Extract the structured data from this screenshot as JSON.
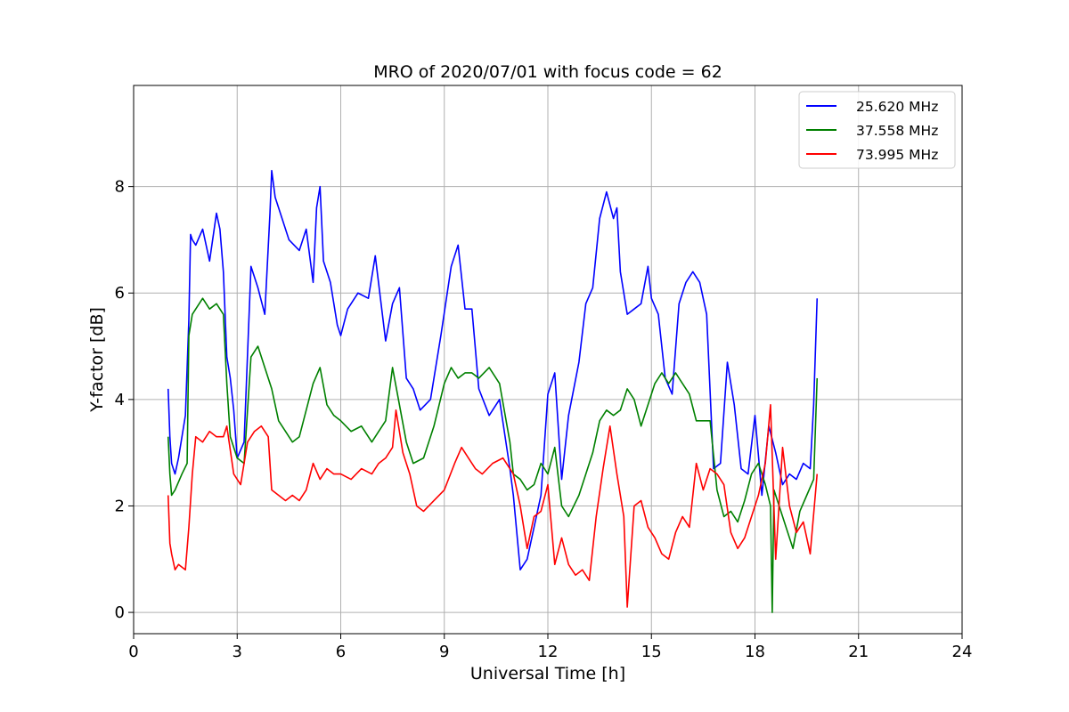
{
  "chart_data": {
    "type": "line",
    "title": "MRO of 2020/07/01 with focus code = 62",
    "xlabel": "Universal Time [h]",
    "ylabel": "Y-factor [dB]",
    "xlim": [
      0,
      24
    ],
    "ylim": [
      -0.4,
      9.9
    ],
    "xticks": [
      0,
      3,
      6,
      9,
      12,
      15,
      18,
      21,
      24
    ],
    "yticks": [
      0,
      2,
      4,
      6,
      8
    ],
    "grid": true,
    "legend_position": "top-right",
    "series": [
      {
        "name": "25.620 MHz",
        "color": "#0000ff",
        "x": [
          1.0,
          1.05,
          1.1,
          1.2,
          1.3,
          1.4,
          1.5,
          1.6,
          1.65,
          1.7,
          1.8,
          2.0,
          2.2,
          2.4,
          2.5,
          2.6,
          2.7,
          2.8,
          2.9,
          3.0,
          3.2,
          3.4,
          3.6,
          3.8,
          3.95,
          4.0,
          4.1,
          4.3,
          4.5,
          4.8,
          5.0,
          5.2,
          5.3,
          5.4,
          5.5,
          5.7,
          5.9,
          6.0,
          6.2,
          6.5,
          6.8,
          7.0,
          7.3,
          7.5,
          7.7,
          7.9,
          8.1,
          8.3,
          8.6,
          8.9,
          9.2,
          9.4,
          9.6,
          9.8,
          10.0,
          10.3,
          10.6,
          10.9,
          11.0,
          11.2,
          11.4,
          11.6,
          11.8,
          12.0,
          12.2,
          12.4,
          12.6,
          12.9,
          13.1,
          13.3,
          13.5,
          13.7,
          13.9,
          14.0,
          14.1,
          14.3,
          14.5,
          14.7,
          14.9,
          15.0,
          15.2,
          15.4,
          15.6,
          15.8,
          16.0,
          16.2,
          16.4,
          16.6,
          16.8,
          17.0,
          17.2,
          17.4,
          17.6,
          17.8,
          18.0,
          18.2,
          18.4,
          18.6,
          18.8,
          19.0,
          19.2,
          19.4,
          19.6,
          19.7,
          19.8
        ],
        "y": [
          4.2,
          3.3,
          2.8,
          2.6,
          2.9,
          3.3,
          3.7,
          5.5,
          7.1,
          7.0,
          6.9,
          7.2,
          6.6,
          7.5,
          7.2,
          6.4,
          4.8,
          4.4,
          3.8,
          2.9,
          3.2,
          6.5,
          6.1,
          5.6,
          7.5,
          8.3,
          7.8,
          7.4,
          7.0,
          6.8,
          7.2,
          6.2,
          7.6,
          8.0,
          6.6,
          6.2,
          5.4,
          5.2,
          5.7,
          6.0,
          5.9,
          6.7,
          5.1,
          5.8,
          6.1,
          4.4,
          4.2,
          3.8,
          4.0,
          5.2,
          6.5,
          6.9,
          5.7,
          5.7,
          4.2,
          3.7,
          4.0,
          2.7,
          2.2,
          0.8,
          1.0,
          1.6,
          2.2,
          4.1,
          4.5,
          2.5,
          3.7,
          4.7,
          5.8,
          6.1,
          7.4,
          7.9,
          7.4,
          7.6,
          6.4,
          5.6,
          5.7,
          5.8,
          6.5,
          5.9,
          5.6,
          4.4,
          4.1,
          5.8,
          6.2,
          6.4,
          6.2,
          5.6,
          2.7,
          2.8,
          4.7,
          3.9,
          2.7,
          2.6,
          3.7,
          2.2,
          3.5,
          3.0,
          2.4,
          2.6,
          2.5,
          2.8,
          2.7,
          3.9,
          5.9
        ]
      },
      {
        "name": "37.558 MHz",
        "color": "#008000",
        "x": [
          1.0,
          1.05,
          1.1,
          1.2,
          1.4,
          1.55,
          1.6,
          1.7,
          1.8,
          2.0,
          2.2,
          2.4,
          2.6,
          2.7,
          2.8,
          3.0,
          3.2,
          3.4,
          3.6,
          3.8,
          4.0,
          4.2,
          4.4,
          4.6,
          4.8,
          5.0,
          5.2,
          5.4,
          5.6,
          5.8,
          6.0,
          6.3,
          6.6,
          6.9,
          7.1,
          7.3,
          7.5,
          7.7,
          7.9,
          8.1,
          8.4,
          8.7,
          9.0,
          9.2,
          9.4,
          9.6,
          9.8,
          10.0,
          10.3,
          10.6,
          10.9,
          11.0,
          11.2,
          11.4,
          11.6,
          11.8,
          12.0,
          12.2,
          12.4,
          12.6,
          12.9,
          13.1,
          13.3,
          13.5,
          13.7,
          13.9,
          14.1,
          14.3,
          14.5,
          14.7,
          14.9,
          15.1,
          15.3,
          15.5,
          15.7,
          15.9,
          16.1,
          16.3,
          16.5,
          16.7,
          16.9,
          17.1,
          17.3,
          17.5,
          17.7,
          17.9,
          18.1,
          18.3,
          18.45,
          18.5,
          18.55,
          18.7,
          18.9,
          19.1,
          19.3,
          19.5,
          19.7,
          19.8
        ],
        "y": [
          3.3,
          2.6,
          2.2,
          2.3,
          2.6,
          2.8,
          5.2,
          5.6,
          5.7,
          5.9,
          5.7,
          5.8,
          5.6,
          4.3,
          3.3,
          2.9,
          2.8,
          4.8,
          5.0,
          4.6,
          4.2,
          3.6,
          3.4,
          3.2,
          3.3,
          3.8,
          4.3,
          4.6,
          3.9,
          3.7,
          3.6,
          3.4,
          3.5,
          3.2,
          3.4,
          3.6,
          4.6,
          3.9,
          3.2,
          2.8,
          2.9,
          3.5,
          4.3,
          4.6,
          4.4,
          4.5,
          4.5,
          4.4,
          4.6,
          4.3,
          3.2,
          2.6,
          2.5,
          2.3,
          2.4,
          2.8,
          2.6,
          3.1,
          2.0,
          1.8,
          2.2,
          2.6,
          3.0,
          3.6,
          3.8,
          3.7,
          3.8,
          4.2,
          4.0,
          3.5,
          3.9,
          4.3,
          4.5,
          4.3,
          4.5,
          4.3,
          4.1,
          3.6,
          3.6,
          3.6,
          2.3,
          1.8,
          1.9,
          1.7,
          2.1,
          2.6,
          2.8,
          2.4,
          2.0,
          0.0,
          2.3,
          2.0,
          1.6,
          1.2,
          1.9,
          2.2,
          2.5,
          4.4
        ]
      },
      {
        "name": "73.995 MHz",
        "color": "#ff0000",
        "x": [
          1.0,
          1.05,
          1.1,
          1.2,
          1.3,
          1.5,
          1.6,
          1.7,
          1.8,
          2.0,
          2.2,
          2.4,
          2.6,
          2.7,
          2.9,
          3.1,
          3.3,
          3.5,
          3.7,
          3.9,
          4.0,
          4.2,
          4.4,
          4.6,
          4.8,
          5.0,
          5.2,
          5.4,
          5.6,
          5.8,
          6.0,
          6.3,
          6.6,
          6.9,
          7.1,
          7.3,
          7.5,
          7.6,
          7.8,
          8.0,
          8.2,
          8.4,
          8.7,
          9.0,
          9.3,
          9.5,
          9.7,
          9.9,
          10.1,
          10.4,
          10.7,
          11.0,
          11.2,
          11.4,
          11.6,
          11.8,
          12.0,
          12.2,
          12.4,
          12.6,
          12.8,
          13.0,
          13.2,
          13.4,
          13.6,
          13.8,
          14.0,
          14.2,
          14.3,
          14.5,
          14.7,
          14.9,
          15.1,
          15.3,
          15.5,
          15.7,
          15.9,
          16.1,
          16.3,
          16.5,
          16.7,
          16.9,
          17.1,
          17.3,
          17.5,
          17.7,
          17.9,
          18.1,
          18.3,
          18.45,
          18.6,
          18.8,
          19.0,
          19.2,
          19.4,
          19.6,
          19.8
        ],
        "y": [
          2.2,
          1.3,
          1.1,
          0.8,
          0.9,
          0.8,
          1.6,
          2.6,
          3.3,
          3.2,
          3.4,
          3.3,
          3.3,
          3.5,
          2.6,
          2.4,
          3.2,
          3.4,
          3.5,
          3.3,
          2.3,
          2.2,
          2.1,
          2.2,
          2.1,
          2.3,
          2.8,
          2.5,
          2.7,
          2.6,
          2.6,
          2.5,
          2.7,
          2.6,
          2.8,
          2.9,
          3.1,
          3.8,
          3.0,
          2.6,
          2.0,
          1.9,
          2.1,
          2.3,
          2.8,
          3.1,
          2.9,
          2.7,
          2.6,
          2.8,
          2.9,
          2.6,
          2.0,
          1.2,
          1.8,
          1.9,
          2.4,
          0.9,
          1.4,
          0.9,
          0.7,
          0.8,
          0.6,
          1.8,
          2.7,
          3.5,
          2.6,
          1.8,
          0.1,
          2.0,
          2.1,
          1.6,
          1.4,
          1.1,
          1.0,
          1.5,
          1.8,
          1.6,
          2.8,
          2.3,
          2.7,
          2.6,
          2.4,
          1.5,
          1.2,
          1.4,
          1.8,
          2.2,
          2.8,
          3.9,
          1.0,
          3.1,
          2.0,
          1.5,
          1.7,
          1.1,
          2.6
        ]
      }
    ]
  }
}
